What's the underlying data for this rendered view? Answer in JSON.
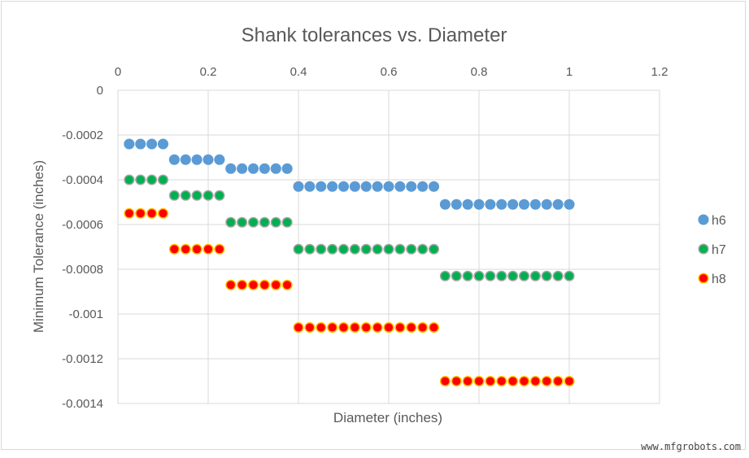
{
  "chart_data": {
    "type": "scatter",
    "title": "Shank tolerances vs. Diameter",
    "xlabel": "Diameter (inches)",
    "ylabel": "Minimum Tolerance (inches)",
    "xlim": [
      0,
      1.2
    ],
    "ylim": [
      -0.0014,
      0
    ],
    "x_ticks": [
      "0",
      "0.2",
      "0.4",
      "0.6",
      "0.8",
      "1",
      "1.2"
    ],
    "y_ticks": [
      "0",
      "-0.0002",
      "-0.0004",
      "-0.0006",
      "-0.0008",
      "-0.001",
      "-0.0012",
      "-0.0014"
    ],
    "x_axis_position": "top",
    "grid": true,
    "legend_position": "right",
    "x": [
      0.025,
      0.05,
      0.075,
      0.1,
      0.125,
      0.15,
      0.175,
      0.2,
      0.225,
      0.25,
      0.275,
      0.3,
      0.325,
      0.35,
      0.375,
      0.4,
      0.425,
      0.45,
      0.475,
      0.5,
      0.525,
      0.55,
      0.575,
      0.6,
      0.625,
      0.65,
      0.675,
      0.7,
      0.725,
      0.75,
      0.775,
      0.8,
      0.825,
      0.85,
      0.875,
      0.9,
      0.925,
      0.95,
      0.975,
      1.0
    ],
    "series": [
      {
        "name": "h6",
        "color": "#5B9BD5",
        "border": "#5B9BD5",
        "step_values": [
          -0.00024,
          -0.00031,
          -0.00035,
          -0.00043,
          -0.00051
        ]
      },
      {
        "name": "h7",
        "color": "#00B050",
        "border": "#A5A5A5",
        "step_values": [
          -0.0004,
          -0.00047,
          -0.00059,
          -0.00071,
          -0.00083
        ]
      },
      {
        "name": "h8",
        "color": "#FF0000",
        "border": "#FFC000",
        "step_values": [
          -0.00055,
          -0.00071,
          -0.00087,
          -0.00106,
          -0.0013
        ]
      }
    ],
    "step_upper_bounds": [
      0.1,
      0.225,
      0.375,
      0.7,
      1.0
    ]
  },
  "watermark": "www.mfgrobots.com"
}
